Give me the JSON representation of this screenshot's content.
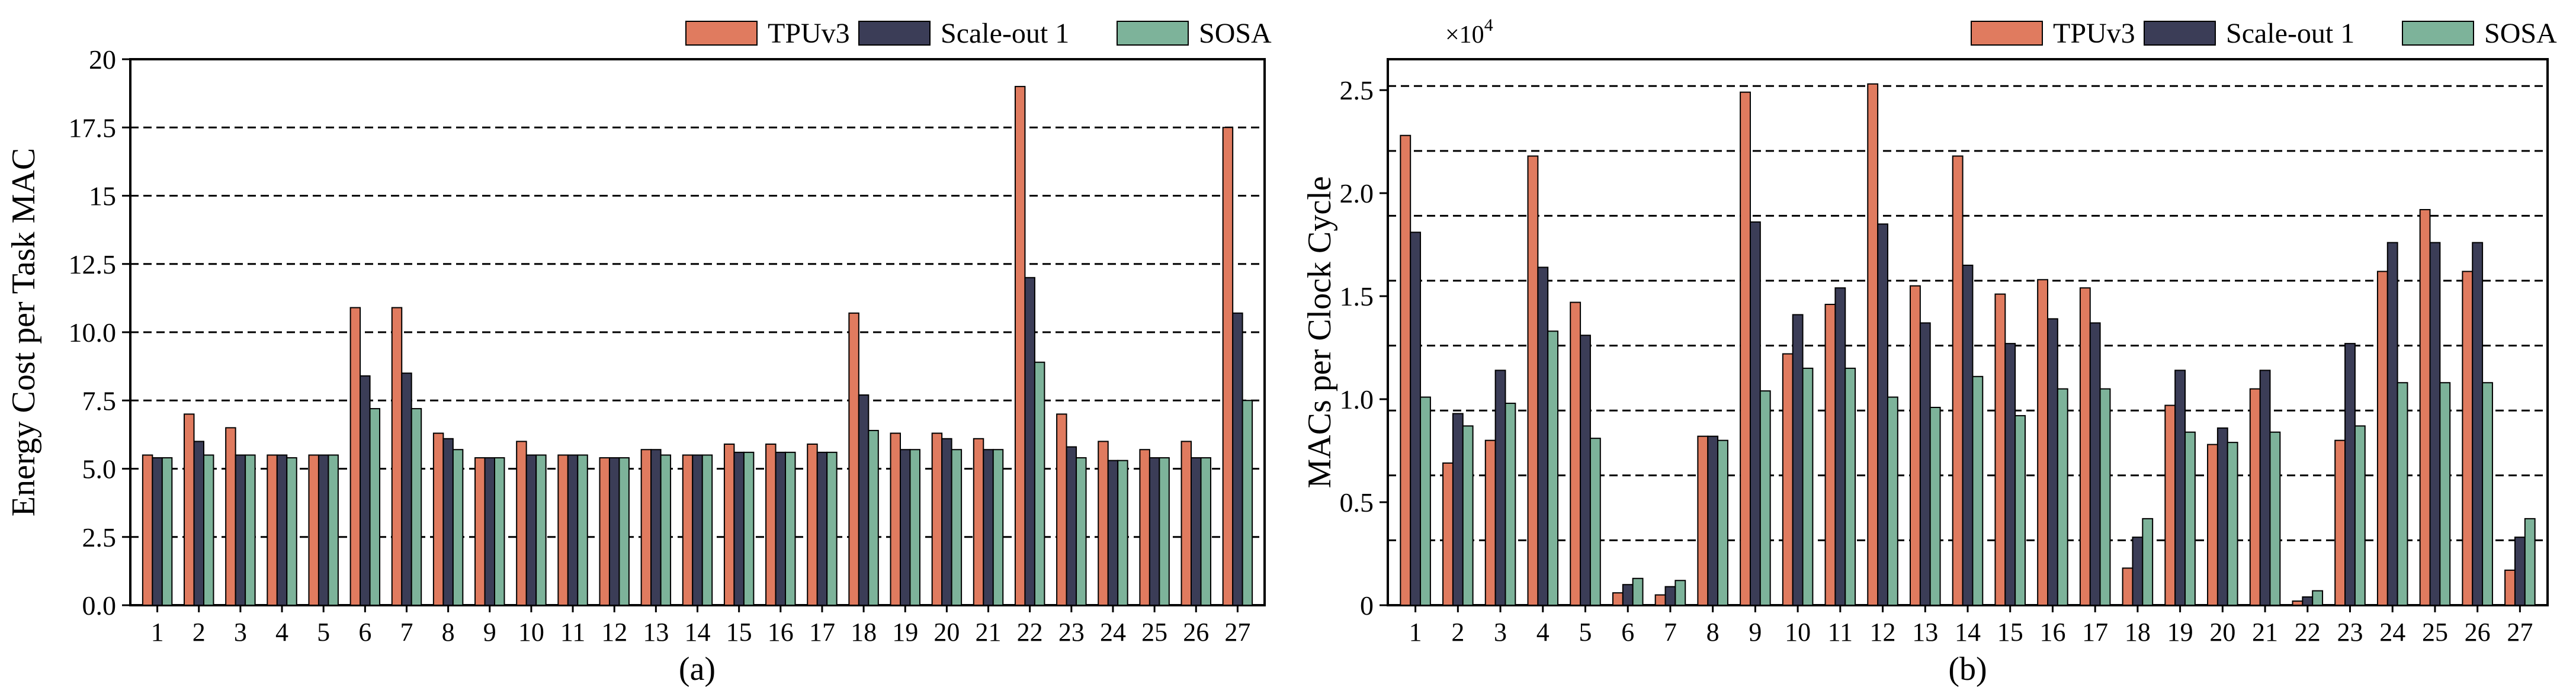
{
  "chart_data": [
    {
      "type": "bar",
      "caption": "(a)",
      "ylabel": "Energy Cost per Task MAC",
      "xlabel": "",
      "ylim": [
        0,
        20
      ],
      "yticks": [
        0,
        2.5,
        5,
        7.5,
        10,
        12.5,
        15,
        17.5,
        20
      ],
      "ytick_labels": [
        "0.0",
        "2.5",
        "5.0",
        "7.5",
        "10.0",
        "12.5",
        "15",
        "17.5",
        "20"
      ],
      "grid": "dashed horizontal at major ticks",
      "legend": "top-right, outside above plot",
      "categories": [
        "1",
        "2",
        "3",
        "4",
        "5",
        "6",
        "7",
        "8",
        "9",
        "10",
        "11",
        "12",
        "13",
        "14",
        "15",
        "16",
        "17",
        "18",
        "19",
        "20",
        "21",
        "22",
        "23",
        "24",
        "25",
        "26",
        "27"
      ],
      "series": [
        {
          "name": "TPUv3",
          "color": "#e07b5f",
          "values": [
            5.5,
            7.0,
            6.5,
            5.5,
            5.5,
            10.9,
            10.9,
            6.3,
            5.4,
            6.0,
            5.5,
            5.4,
            5.7,
            5.5,
            5.9,
            5.9,
            5.9,
            10.7,
            6.3,
            6.3,
            6.1,
            19.0,
            7.0,
            6.0,
            5.7,
            6.0,
            17.5
          ]
        },
        {
          "name": "Scale-out 1",
          "color": "#3b3d57",
          "values": [
            5.4,
            6.0,
            5.5,
            5.5,
            5.5,
            8.4,
            8.5,
            6.1,
            5.4,
            5.5,
            5.5,
            5.4,
            5.7,
            5.5,
            5.6,
            5.6,
            5.6,
            7.7,
            5.7,
            6.1,
            5.7,
            12.0,
            5.8,
            5.3,
            5.4,
            5.4,
            10.7
          ]
        },
        {
          "name": "SOSA",
          "color": "#7db39a",
          "values": [
            5.4,
            5.5,
            5.5,
            5.4,
            5.5,
            7.2,
            7.2,
            5.7,
            5.4,
            5.5,
            5.5,
            5.4,
            5.5,
            5.5,
            5.6,
            5.6,
            5.6,
            6.4,
            5.7,
            5.7,
            5.7,
            8.9,
            5.4,
            5.3,
            5.4,
            5.4,
            7.5
          ]
        }
      ]
    },
    {
      "type": "bar",
      "caption": "(b)",
      "ylabel": "MACs per Clock Cycle",
      "xlabel": "",
      "scale_label": "×10",
      "scale_exp": "4",
      "ylim": [
        0,
        2.65
      ],
      "yticks": [
        0,
        0.5,
        1.0,
        1.5,
        2.0,
        2.5
      ],
      "ytick_labels": [
        "0",
        "0.5",
        "1.0",
        "1.5",
        "2.0",
        "2.5"
      ],
      "grid_values": [
        0.315,
        0.63,
        0.945,
        1.26,
        1.575,
        1.89,
        2.205,
        2.52
      ],
      "grid": "dashed horizontal",
      "legend": "top-right, outside above plot",
      "categories": [
        "1",
        "2",
        "3",
        "4",
        "5",
        "6",
        "7",
        "8",
        "9",
        "10",
        "11",
        "12",
        "13",
        "14",
        "15",
        "16",
        "17",
        "18",
        "19",
        "20",
        "21",
        "22",
        "23",
        "24",
        "25",
        "26",
        "27"
      ],
      "series": [
        {
          "name": "TPUv3",
          "color": "#e07b5f",
          "values": [
            2.28,
            0.69,
            0.8,
            2.18,
            1.47,
            0.06,
            0.05,
            0.82,
            2.49,
            1.22,
            1.46,
            2.53,
            1.55,
            2.18,
            1.51,
            1.58,
            1.54,
            0.18,
            0.97,
            0.78,
            1.05,
            0.02,
            0.8,
            1.62,
            1.92,
            1.62,
            0.17
          ]
        },
        {
          "name": "Scale-out 1",
          "color": "#3b3d57",
          "values": [
            1.81,
            0.93,
            1.14,
            1.64,
            1.31,
            0.1,
            0.09,
            0.82,
            1.86,
            1.41,
            1.54,
            1.85,
            1.37,
            1.65,
            1.27,
            1.39,
            1.37,
            0.33,
            1.14,
            0.86,
            1.14,
            0.04,
            1.27,
            1.76,
            1.76,
            1.76,
            0.33
          ]
        },
        {
          "name": "SOSA",
          "color": "#7db39a",
          "values": [
            1.01,
            0.87,
            0.98,
            1.33,
            0.81,
            0.13,
            0.12,
            0.8,
            1.04,
            1.15,
            1.15,
            1.01,
            0.96,
            1.11,
            0.92,
            1.05,
            1.05,
            0.42,
            0.84,
            0.79,
            0.84,
            0.07,
            0.87,
            1.08,
            1.08,
            1.08,
            0.42
          ]
        }
      ]
    }
  ]
}
